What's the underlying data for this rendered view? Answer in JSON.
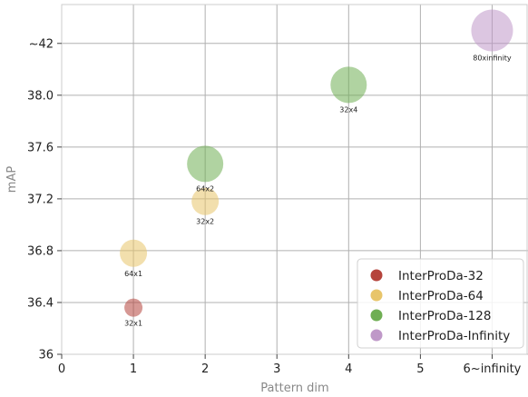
{
  "chart_data": {
    "type": "scatter",
    "xlabel": "Pattern dim",
    "ylabel": "mAP",
    "x_ticks": [
      {
        "value": 0,
        "label": "0"
      },
      {
        "value": 1,
        "label": "1"
      },
      {
        "value": 2,
        "label": "2"
      },
      {
        "value": 3,
        "label": "3"
      },
      {
        "value": 4,
        "label": "4"
      },
      {
        "value": 5,
        "label": "5"
      },
      {
        "value": 6,
        "label": "6~infinity"
      }
    ],
    "y_ticks": [
      {
        "value": 36.0,
        "label": "36"
      },
      {
        "value": 36.4,
        "label": "36.4"
      },
      {
        "value": 36.8,
        "label": "36.8"
      },
      {
        "value": 37.2,
        "label": "37.2"
      },
      {
        "value": 37.6,
        "label": "37.6"
      },
      {
        "value": 38.0,
        "label": "38.0"
      },
      {
        "value": 38.4,
        "label": "~42"
      }
    ],
    "xlim": [
      0,
      6.5
    ],
    "ylim": [
      36.0,
      38.7
    ],
    "grid": true,
    "legend_position": "bottom-right",
    "series": [
      {
        "name": "InterProDa-32",
        "color": "#b5443c",
        "points": [
          {
            "x": 1,
            "y": 36.36,
            "label": "32x1",
            "size": 1
          }
        ]
      },
      {
        "name": "InterProDa-64",
        "color": "#e8c56a",
        "points": [
          {
            "x": 1,
            "y": 36.78,
            "label": "64x1",
            "size": 2
          },
          {
            "x": 2,
            "y": 37.18,
            "label": "32x2",
            "size": 2
          }
        ]
      },
      {
        "name": "InterProDa-128",
        "color": "#6fae53",
        "points": [
          {
            "x": 2,
            "y": 37.47,
            "label": "64x2",
            "size": 3
          },
          {
            "x": 4,
            "y": 38.08,
            "label": "32x4",
            "size": 3
          }
        ]
      },
      {
        "name": "InterProDa-Infinity",
        "color": "#bf98c8",
        "points": [
          {
            "x": 6,
            "y": 38.5,
            "label": "80xinfinity",
            "size": 4
          }
        ]
      }
    ]
  }
}
